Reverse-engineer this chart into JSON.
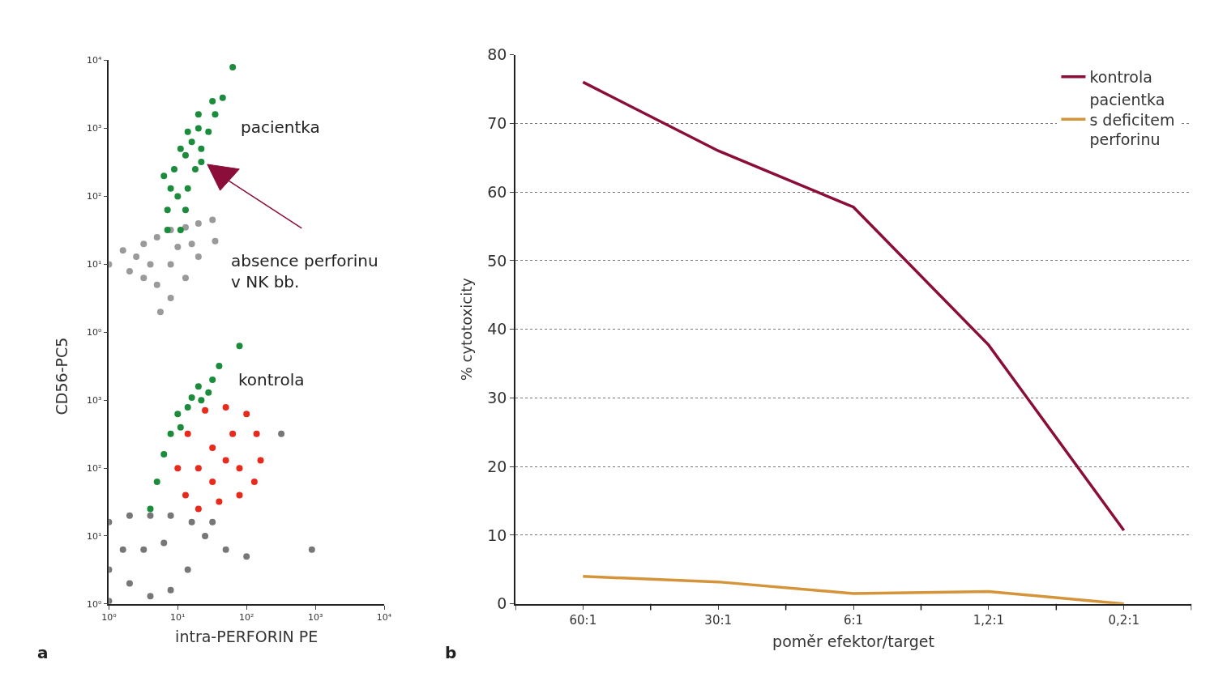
{
  "chart_data": [
    {
      "type": "scatter",
      "xlim": [
        1,
        10000
      ],
      "ylim": [
        1,
        10000
      ],
      "log": "xy",
      "tick_labels": "y",
      "marker": "circle",
      "yticks": [
        {
          "value": 1,
          "label": "10⁰"
        },
        {
          "value": 10,
          "label": "10¹"
        },
        {
          "value": 100,
          "label": "10²"
        },
        {
          "value": 1000,
          "label": "10³"
        },
        {
          "value": 10000,
          "label": "10⁴"
        }
      ],
      "annotations": [
        "pacientka",
        "absence perforinu\nv NK bb."
      ],
      "series": [
        {
          "color": "#9a9a9a",
          "x": [
            1,
            1.6,
            2,
            3.2,
            3.2,
            5,
            5,
            7.9,
            7.9,
            7.9,
            13,
            13,
            20,
            20,
            32,
            35,
            5.6,
            4,
            16,
            2.5,
            10
          ],
          "values": [
            10,
            16,
            7.9,
            20,
            6.3,
            25,
            5,
            32,
            3.2,
            10,
            35,
            6.3,
            40,
            13,
            45,
            22,
            2,
            10,
            20,
            13,
            18
          ]
        },
        {
          "color": "#1a8c3c",
          "x": [
            7.1,
            11,
            7.1,
            13,
            7.9,
            14,
            8.9,
            18,
            11,
            22,
            14,
            28,
            20,
            35,
            32,
            45,
            10,
            13,
            16,
            20,
            63,
            6.3,
            22
          ],
          "values": [
            32,
            32,
            63,
            63,
            130,
            130,
            250,
            250,
            500,
            500,
            890,
            890,
            1600,
            1600,
            2500,
            2800,
            100,
            400,
            630,
            1000,
            7900,
            200,
            320
          ]
        }
      ]
    },
    {
      "type": "scatter",
      "xlim": [
        1,
        10000
      ],
      "ylim": [
        1,
        10000
      ],
      "log": "xy",
      "marker": "circle",
      "xlabel": "intra-PERFORIN PE",
      "ylabel": "CD56-PC5",
      "xticks": [
        {
          "value": 1,
          "label": "10⁰"
        },
        {
          "value": 10,
          "label": "10¹"
        },
        {
          "value": 100,
          "label": "10²"
        },
        {
          "value": 1000,
          "label": "10³"
        },
        {
          "value": 10000,
          "label": "10⁴"
        }
      ],
      "yticks": [
        {
          "value": 1,
          "label": "10⁰"
        },
        {
          "value": 10,
          "label": "10¹"
        },
        {
          "value": 100,
          "label": "10²"
        },
        {
          "value": 1000,
          "label": "10³"
        },
        {
          "value": 10000,
          "label": null
        }
      ],
      "annotations": [
        "kontrola",
        "a"
      ],
      "series": [
        {
          "color": "#777777",
          "x": [
            1,
            1,
            1,
            2,
            2,
            4,
            4,
            7.9,
            7.9,
            16,
            14,
            3.2,
            6.3,
            25,
            50,
            100,
            32,
            890,
            320,
            1.6
          ],
          "values": [
            16,
            3.2,
            1.1,
            20,
            2,
            20,
            1.3,
            20,
            1.6,
            16,
            3.2,
            6.3,
            7.9,
            10,
            6.3,
            5,
            16,
            6.3,
            320,
            6.3
          ]
        },
        {
          "color": "#1a8c3c",
          "x": [
            4,
            5,
            6.3,
            7.9,
            10,
            14,
            16,
            22,
            20,
            32,
            28,
            40,
            79,
            11
          ],
          "values": [
            25,
            63,
            160,
            320,
            630,
            790,
            1100,
            1000,
            1600,
            2000,
            1300,
            3200,
            6300,
            400
          ]
        },
        {
          "color": "#e8291c",
          "x": [
            50,
            10,
            13,
            20,
            40,
            79,
            130,
            160,
            140,
            100,
            50,
            25,
            14,
            32,
            63,
            32,
            79,
            20
          ],
          "values": [
            130,
            100,
            40,
            25,
            32,
            40,
            63,
            130,
            320,
            630,
            790,
            710,
            320,
            200,
            320,
            63,
            100,
            100
          ]
        }
      ]
    },
    {
      "type": "line",
      "categories": [
        "60:1",
        "30:1",
        "6:1",
        "1,2:1",
        "0,2:1"
      ],
      "ylim": [
        0,
        80
      ],
      "yticks": [
        0,
        10,
        20,
        30,
        40,
        50,
        60,
        70,
        80
      ],
      "grid": "y",
      "legend": "top right",
      "line_style": "solid",
      "marker": "none",
      "xlabel": "poměr efektor/target",
      "ylabel": "% cytotoxicity",
      "annotations": [
        "b"
      ],
      "series": [
        {
          "name": "kontrola",
          "color": "#8b0d3a",
          "values": [
            76,
            66,
            57.8,
            37.7,
            10.7
          ]
        },
        {
          "name": "pacientka\ns deficitem\nperforinu",
          "color": "#d4953a",
          "values": [
            4,
            3.2,
            1.5,
            1.8,
            0
          ]
        }
      ]
    }
  ]
}
